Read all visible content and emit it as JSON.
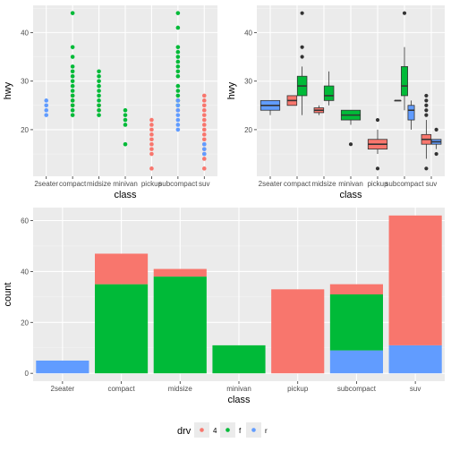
{
  "colors": {
    "drv_4": "#F8766D",
    "drv_f": "#00BA38",
    "drv_r": "#619CFF",
    "panel_bg": "#EBEBEB",
    "grid_major": "#FFFFFF",
    "grid_minor": "#F4F4F4"
  },
  "legend": {
    "title": "drv",
    "items": [
      {
        "key": "4",
        "label": "4",
        "color": "#F8766D"
      },
      {
        "key": "f",
        "label": "f",
        "color": "#00BA38"
      },
      {
        "key": "r",
        "label": "r",
        "color": "#619CFF"
      }
    ],
    "position": "bottom"
  },
  "chart_data": [
    {
      "type": "scatter",
      "xlabel": "class",
      "ylabel": "hwy",
      "categories": [
        "2seater",
        "compact",
        "midsize",
        "minivan",
        "pickup",
        "subcompact",
        "suv"
      ],
      "yticks": [
        20,
        30,
        40
      ],
      "ylim": [
        10.4,
        45.6
      ],
      "grid": true,
      "series": [
        {
          "name": "4",
          "color": "#F8766D",
          "points": [
            {
              "x": "compact",
              "y": 25
            },
            {
              "x": "compact",
              "y": 26
            },
            {
              "x": "compact",
              "y": 27
            },
            {
              "x": "midsize",
              "y": 24
            },
            {
              "x": "midsize",
              "y": 25
            },
            {
              "x": "pickup",
              "y": 12
            },
            {
              "x": "pickup",
              "y": 15
            },
            {
              "x": "pickup",
              "y": 16
            },
            {
              "x": "pickup",
              "y": 17
            },
            {
              "x": "pickup",
              "y": 18
            },
            {
              "x": "pickup",
              "y": 19
            },
            {
              "x": "pickup",
              "y": 20
            },
            {
              "x": "pickup",
              "y": 21
            },
            {
              "x": "pickup",
              "y": 22
            },
            {
              "x": "subcompact",
              "y": 24
            },
            {
              "x": "subcompact",
              "y": 26
            },
            {
              "x": "suv",
              "y": 12
            },
            {
              "x": "suv",
              "y": 14
            },
            {
              "x": "suv",
              "y": 15
            },
            {
              "x": "suv",
              "y": 16
            },
            {
              "x": "suv",
              "y": 17
            },
            {
              "x": "suv",
              "y": 18
            },
            {
              "x": "suv",
              "y": 19
            },
            {
              "x": "suv",
              "y": 20
            },
            {
              "x": "suv",
              "y": 21
            },
            {
              "x": "suv",
              "y": 22
            },
            {
              "x": "suv",
              "y": 23
            },
            {
              "x": "suv",
              "y": 24
            },
            {
              "x": "suv",
              "y": 25
            },
            {
              "x": "suv",
              "y": 26
            },
            {
              "x": "suv",
              "y": 27
            }
          ]
        },
        {
          "name": "f",
          "color": "#00BA38",
          "points": [
            {
              "x": "compact",
              "y": 23
            },
            {
              "x": "compact",
              "y": 24
            },
            {
              "x": "compact",
              "y": 25
            },
            {
              "x": "compact",
              "y": 26
            },
            {
              "x": "compact",
              "y": 27
            },
            {
              "x": "compact",
              "y": 28
            },
            {
              "x": "compact",
              "y": 29
            },
            {
              "x": "compact",
              "y": 30
            },
            {
              "x": "compact",
              "y": 31
            },
            {
              "x": "compact",
              "y": 32
            },
            {
              "x": "compact",
              "y": 33
            },
            {
              "x": "compact",
              "y": 35
            },
            {
              "x": "compact",
              "y": 37
            },
            {
              "x": "compact",
              "y": 44
            },
            {
              "x": "midsize",
              "y": 23
            },
            {
              "x": "midsize",
              "y": 24
            },
            {
              "x": "midsize",
              "y": 25
            },
            {
              "x": "midsize",
              "y": 26
            },
            {
              "x": "midsize",
              "y": 27
            },
            {
              "x": "midsize",
              "y": 28
            },
            {
              "x": "midsize",
              "y": 29
            },
            {
              "x": "midsize",
              "y": 30
            },
            {
              "x": "midsize",
              "y": 31
            },
            {
              "x": "midsize",
              "y": 32
            },
            {
              "x": "minivan",
              "y": 17
            },
            {
              "x": "minivan",
              "y": 21
            },
            {
              "x": "minivan",
              "y": 22
            },
            {
              "x": "minivan",
              "y": 23
            },
            {
              "x": "minivan",
              "y": 24
            },
            {
              "x": "subcompact",
              "y": 25
            },
            {
              "x": "subcompact",
              "y": 26
            },
            {
              "x": "subcompact",
              "y": 27
            },
            {
              "x": "subcompact",
              "y": 28
            },
            {
              "x": "subcompact",
              "y": 29
            },
            {
              "x": "subcompact",
              "y": 31
            },
            {
              "x": "subcompact",
              "y": 32
            },
            {
              "x": "subcompact",
              "y": 33
            },
            {
              "x": "subcompact",
              "y": 34
            },
            {
              "x": "subcompact",
              "y": 35
            },
            {
              "x": "subcompact",
              "y": 36
            },
            {
              "x": "subcompact",
              "y": 37
            },
            {
              "x": "subcompact",
              "y": 41
            },
            {
              "x": "subcompact",
              "y": 44
            }
          ]
        },
        {
          "name": "r",
          "color": "#619CFF",
          "points": [
            {
              "x": "2seater",
              "y": 23
            },
            {
              "x": "2seater",
              "y": 24
            },
            {
              "x": "2seater",
              "y": 25
            },
            {
              "x": "2seater",
              "y": 26
            },
            {
              "x": "subcompact",
              "y": 20
            },
            {
              "x": "subcompact",
              "y": 21
            },
            {
              "x": "subcompact",
              "y": 22
            },
            {
              "x": "subcompact",
              "y": 23
            },
            {
              "x": "subcompact",
              "y": 24
            },
            {
              "x": "subcompact",
              "y": 25
            },
            {
              "x": "subcompact",
              "y": 26
            },
            {
              "x": "suv",
              "y": 15
            },
            {
              "x": "suv",
              "y": 16
            },
            {
              "x": "suv",
              "y": 17
            }
          ]
        }
      ]
    },
    {
      "type": "box",
      "xlabel": "class",
      "ylabel": "hwy",
      "categories": [
        "2seater",
        "compact",
        "midsize",
        "minivan",
        "pickup",
        "subcompact",
        "suv"
      ],
      "yticks": [
        20,
        30,
        40
      ],
      "ylim": [
        10.4,
        45.6
      ],
      "grid": true,
      "boxes": [
        {
          "category": "2seater",
          "group": "r",
          "min": 23,
          "q1": 24,
          "median": 25,
          "q3": 26,
          "max": 26,
          "outliers": []
        },
        {
          "category": "compact",
          "group": "4",
          "min": 25,
          "q1": 25,
          "median": 26,
          "q3": 27,
          "max": 27,
          "outliers": []
        },
        {
          "category": "compact",
          "group": "f",
          "min": 23,
          "q1": 27,
          "median": 29,
          "q3": 31,
          "max": 33,
          "outliers": [
            35,
            37,
            44
          ]
        },
        {
          "category": "midsize",
          "group": "4",
          "min": 23,
          "q1": 23.5,
          "median": 24,
          "q3": 24.5,
          "max": 25,
          "outliers": []
        },
        {
          "category": "midsize",
          "group": "f",
          "min": 25,
          "q1": 26,
          "median": 27,
          "q3": 29,
          "max": 32,
          "outliers": []
        },
        {
          "category": "minivan",
          "group": "f",
          "min": 21,
          "q1": 22,
          "median": 23,
          "q3": 24,
          "max": 24,
          "outliers": [
            17
          ]
        },
        {
          "category": "pickup",
          "group": "4",
          "min": 15,
          "q1": 16,
          "median": 17,
          "q3": 18,
          "max": 20,
          "outliers": [
            12,
            22
          ]
        },
        {
          "category": "subcompact",
          "group": "4",
          "min": 26,
          "q1": 26,
          "median": 26,
          "q3": 26,
          "max": 26,
          "outliers": []
        },
        {
          "category": "subcompact",
          "group": "f",
          "min": 24,
          "q1": 27,
          "median": 29,
          "q3": 33,
          "max": 37,
          "outliers": [
            44
          ]
        },
        {
          "category": "subcompact",
          "group": "r",
          "min": 20,
          "q1": 22,
          "median": 24,
          "q3": 25,
          "max": 26,
          "outliers": []
        },
        {
          "category": "suv",
          "group": "4",
          "min": 14,
          "q1": 17,
          "median": 18,
          "q3": 19,
          "max": 22,
          "outliers": [
            12,
            23,
            24,
            25,
            26,
            27
          ]
        },
        {
          "category": "suv",
          "group": "r",
          "min": 16,
          "q1": 17,
          "median": 17.5,
          "q3": 18,
          "max": 18,
          "outliers": [
            15,
            20
          ]
        }
      ]
    },
    {
      "type": "bar",
      "stacked": true,
      "xlabel": "class",
      "ylabel": "count",
      "categories": [
        "2seater",
        "compact",
        "midsize",
        "minivan",
        "pickup",
        "subcompact",
        "suv"
      ],
      "yticks": [
        0,
        20,
        40,
        60
      ],
      "ylim": [
        -3.1,
        65.1
      ],
      "grid": true,
      "series": [
        {
          "name": "4",
          "color": "#F8766D",
          "values": [
            0,
            12,
            3,
            0,
            33,
            4,
            51
          ]
        },
        {
          "name": "f",
          "color": "#00BA38",
          "values": [
            0,
            35,
            38,
            11,
            0,
            22,
            0
          ]
        },
        {
          "name": "r",
          "color": "#619CFF",
          "values": [
            5,
            0,
            0,
            0,
            0,
            9,
            11
          ]
        }
      ]
    }
  ]
}
